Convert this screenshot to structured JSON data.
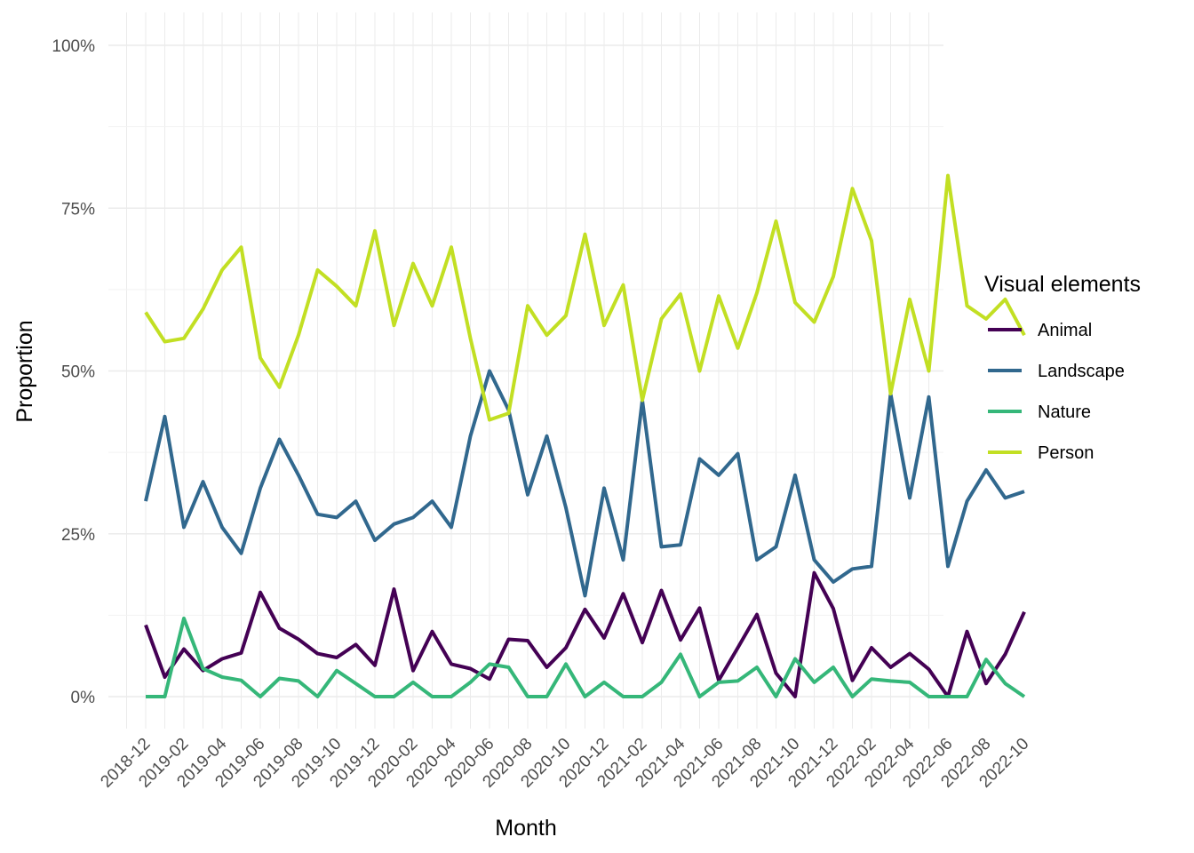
{
  "chart_data": {
    "type": "line",
    "xlabel": "Month",
    "ylabel": "Proportion",
    "ylim": [
      0,
      1
    ],
    "y_ticks": [
      0,
      0.25,
      0.5,
      0.75,
      1.0
    ],
    "y_tick_labels": [
      "0%",
      "25%",
      "50%",
      "75%",
      "100%"
    ],
    "x_tick_labels": [
      "2018-12",
      "2019-02",
      "2019-04",
      "2019-06",
      "2019-08",
      "2019-10",
      "2019-12",
      "2020-02",
      "2020-04",
      "2020-06",
      "2020-08",
      "2020-10",
      "2020-12",
      "2021-02",
      "2021-04",
      "2021-06",
      "2021-08",
      "2021-10",
      "2021-12",
      "2022-02",
      "2022-04",
      "2022-06",
      "2022-08",
      "2022-10"
    ],
    "x": [
      "2018-12",
      "2019-01",
      "2019-02",
      "2019-03",
      "2019-04",
      "2019-05",
      "2019-06",
      "2019-07",
      "2019-08",
      "2019-09",
      "2019-10",
      "2019-11",
      "2019-12",
      "2020-01",
      "2020-02",
      "2020-03",
      "2020-04",
      "2020-05",
      "2020-06",
      "2020-07",
      "2020-08",
      "2020-09",
      "2020-10",
      "2020-11",
      "2020-12",
      "2021-01",
      "2021-02",
      "2021-03",
      "2021-04",
      "2021-05",
      "2021-06",
      "2021-07",
      "2021-08",
      "2021-09",
      "2021-10",
      "2021-11",
      "2021-12",
      "2022-01",
      "2022-02",
      "2022-03",
      "2022-04",
      "2022-05",
      "2022-06",
      "2022-07",
      "2022-08",
      "2022-09",
      "2022-10"
    ],
    "legend_title": "Visual elements",
    "legend_position": "right",
    "grid": true,
    "series": [
      {
        "name": "Animal",
        "color": "#440154",
        "values": [
          0.11,
          0.03,
          0.073,
          0.04,
          0.058,
          0.067,
          0.16,
          0.105,
          0.088,
          0.066,
          0.06,
          0.08,
          0.048,
          0.165,
          0.04,
          0.1,
          0.05,
          0.043,
          0.027,
          0.088,
          0.086,
          0.045,
          0.075,
          0.134,
          0.09,
          0.158,
          0.083,
          0.163,
          0.087,
          0.136,
          0.025,
          0.075,
          0.126,
          0.036,
          0.0,
          0.19,
          0.135,
          0.025,
          0.075,
          0.045,
          0.066,
          0.042,
          0.0,
          0.1,
          0.02,
          0.065,
          0.13
        ]
      },
      {
        "name": "Landscape",
        "color": "#31688E",
        "values": [
          0.3,
          0.43,
          0.26,
          0.33,
          0.26,
          0.22,
          0.32,
          0.395,
          0.34,
          0.28,
          0.275,
          0.3,
          0.24,
          0.265,
          0.275,
          0.3,
          0.26,
          0.4,
          0.5,
          0.44,
          0.31,
          0.4,
          0.29,
          0.155,
          0.32,
          0.21,
          0.455,
          0.23,
          0.233,
          0.365,
          0.34,
          0.373,
          0.21,
          0.23,
          0.34,
          0.21,
          0.176,
          0.196,
          0.2,
          0.465,
          0.305,
          0.46,
          0.2,
          0.3,
          0.348,
          0.305,
          0.315
        ]
      },
      {
        "name": "Nature",
        "color": "#35B779",
        "values": [
          0.0,
          0.0,
          0.12,
          0.043,
          0.03,
          0.025,
          0.0,
          0.028,
          0.024,
          0.0,
          0.04,
          0.02,
          0.0,
          0.0,
          0.022,
          0.0,
          0.0,
          0.022,
          0.05,
          0.045,
          0.0,
          0.0,
          0.05,
          0.0,
          0.022,
          0.0,
          0.0,
          0.022,
          0.065,
          0.0,
          0.022,
          0.024,
          0.045,
          0.0,
          0.058,
          0.022,
          0.045,
          0.0,
          0.027,
          0.024,
          0.022,
          0.0,
          0.0,
          0.0,
          0.057,
          0.02,
          0.0
        ]
      },
      {
        "name": "Person",
        "color": "#C2DF23",
        "values": [
          0.59,
          0.545,
          0.55,
          0.595,
          0.655,
          0.69,
          0.52,
          0.475,
          0.555,
          0.655,
          0.63,
          0.6,
          0.715,
          0.57,
          0.665,
          0.6,
          0.69,
          0.55,
          0.425,
          0.435,
          0.6,
          0.555,
          0.585,
          0.71,
          0.57,
          0.632,
          0.455,
          0.58,
          0.618,
          0.5,
          0.615,
          0.535,
          0.62,
          0.73,
          0.605,
          0.575,
          0.645,
          0.78,
          0.7,
          0.465,
          0.61,
          0.5,
          0.8,
          0.6,
          0.58,
          0.61,
          0.555
        ]
      }
    ]
  }
}
